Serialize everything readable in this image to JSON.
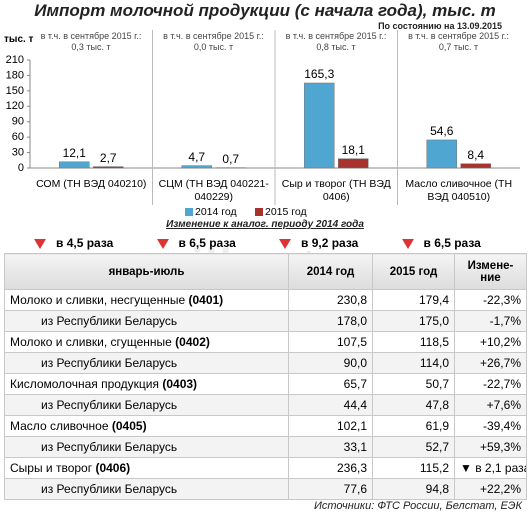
{
  "chart_data": {
    "type": "bar",
    "title": "Импорт молочной продукции (с начала года), тыс. т",
    "subtitle": "По состоянию на 13.09.2015",
    "y_label": "тыс. т",
    "categories": [
      "СОМ (ТН ВЭД 040210)",
      "СЦМ (ТН ВЭД 040221-040229)",
      "Сыр и творог (ТН ВЭД 0406)",
      "Масло сливочное (ТН ВЭД 040510)"
    ],
    "notes": [
      {
        "label": "в т.ч. в сентябре 2015 г.:",
        "value": "0,3 тыс. т"
      },
      {
        "label": "в т.ч. в сентябре 2015 г.:",
        "value": "0,0 тыс. т"
      },
      {
        "label": "в т.ч. в сентябре 2015 г.:",
        "value": "0,8 тыс. т"
      },
      {
        "label": "в т.ч. в сентябре 2015 г.:",
        "value": "0,7 тыс. т"
      }
    ],
    "series": [
      {
        "name": "2014 год",
        "color": "#4fa6d1",
        "values": [
          12.1,
          4.7,
          165.3,
          54.6
        ],
        "value_labels": [
          "12,1",
          "4,7",
          "165,3",
          "54,6"
        ]
      },
      {
        "name": "2015 год",
        "color": "#a8322e",
        "values": [
          2.7,
          0.7,
          18.1,
          8.4
        ],
        "value_labels": [
          "2,7",
          "0,7",
          "18,1",
          "8,4"
        ]
      }
    ],
    "ylim": [
      0,
      210
    ],
    "yticks": [
      0,
      30,
      60,
      90,
      120,
      150,
      180,
      210
    ],
    "grid": false
  },
  "changes": {
    "title": "Изменение к аналог. периоду 2014 года",
    "items": [
      "в 4,5 раза",
      "в 6,5 раза",
      "в 9,2 раза",
      "в 6,5 раза"
    ]
  },
  "table": {
    "header": [
      "январь-июль",
      "2014 год",
      "2015 год",
      "Измене-ние"
    ],
    "rows": [
      {
        "name": "Молоко и сливки, несгущенные",
        "code": "(0401)",
        "values": [
          "230,8",
          "179,4",
          "-22,3%"
        ]
      },
      {
        "name": "из Республики Беларусь",
        "values": [
          "178,0",
          "175,0",
          "-1,7%"
        ]
      },
      {
        "name": "Молоко и сливки, сгущенные",
        "code": "(0402)",
        "values": [
          "107,5",
          "118,5",
          "+10,2%"
        ]
      },
      {
        "name": "из Республики Беларусь",
        "values": [
          "90,0",
          "114,0",
          "+26,7%"
        ]
      },
      {
        "name": "Кисломолочная продукция",
        "code": "(0403)",
        "values": [
          "65,7",
          "50,7",
          "-22,7%"
        ]
      },
      {
        "name": "из Республики Беларусь",
        "values": [
          "44,4",
          "47,8",
          "+7,6%"
        ]
      },
      {
        "name": "Масло сливочное",
        "code": "(0405)",
        "values": [
          "102,1",
          "61,9",
          "-39,4%"
        ]
      },
      {
        "name": "из Республики Беларусь",
        "values": [
          "33,1",
          "52,7",
          "+59,3%"
        ]
      },
      {
        "name": "Сыры и творог",
        "code": "(0406)",
        "values": [
          "236,3",
          "115,2",
          "▼ в 2,1 раза"
        ]
      },
      {
        "name": "из Республики Беларусь",
        "values": [
          "77,6",
          "94,8",
          "+22,2%"
        ]
      }
    ]
  },
  "source": "Источники: ФТС России, Белстат, ЕЭК",
  "watermark": "milknet.ru"
}
